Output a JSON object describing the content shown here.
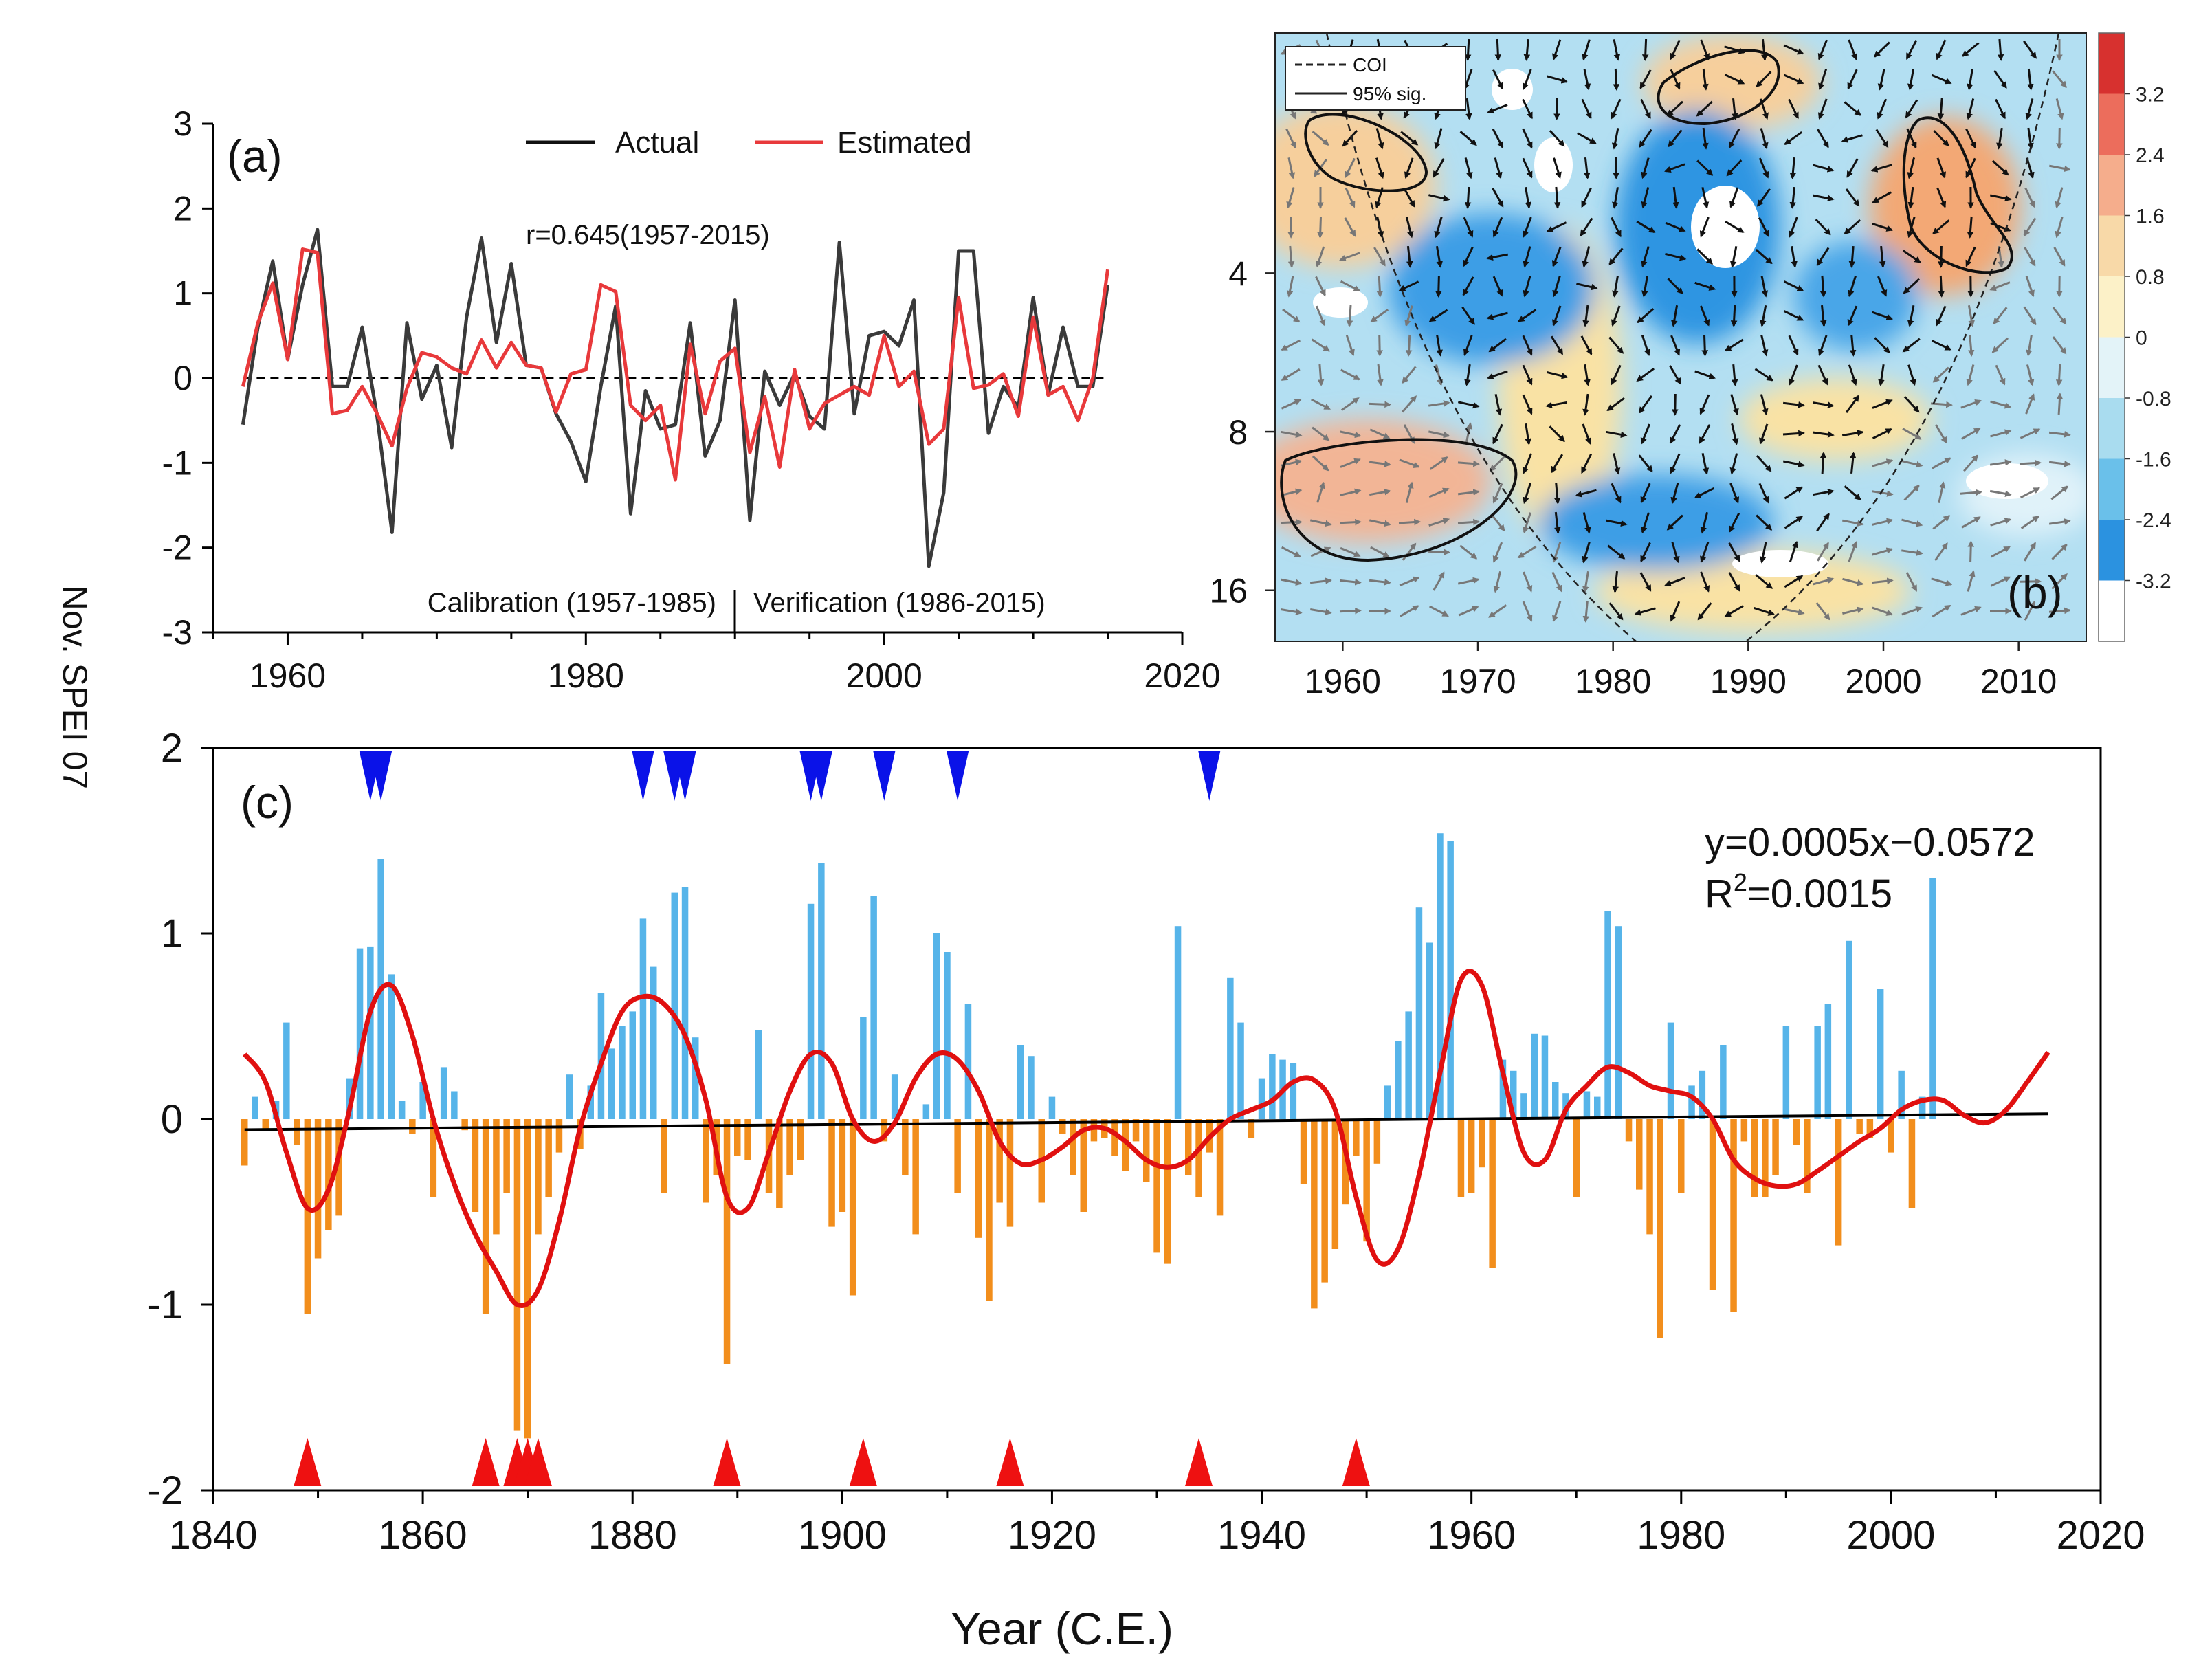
{
  "figure": {
    "shared_ylabel": "Nov. SPEI 07",
    "colors": {
      "actual": "#3a3a3a",
      "estimated": "#e8393b",
      "positive_bar": "#56b4e9",
      "negative_bar": "#f28e1c",
      "smooth": "#e01010",
      "trend": "#000000",
      "dry_marker": "#0a12e8",
      "wet_marker": "#ee1111"
    }
  },
  "chart_data": [
    {
      "id": "a",
      "type": "line",
      "panel_label": "(a)",
      "xlim": [
        1955,
        2020
      ],
      "ylim": [
        -3,
        3
      ],
      "xticks": [
        "1960",
        "1980",
        "2000",
        "2020"
      ],
      "xtick_values": [
        1960,
        1980,
        2000,
        2020
      ],
      "yticks": [
        "3",
        "2",
        "1",
        "0",
        "-1",
        "-2",
        "-3"
      ],
      "ytick_values": [
        3,
        2,
        1,
        0,
        -1,
        -2,
        -3
      ],
      "legend": [
        "Actual",
        "Estimated"
      ],
      "annotation": "r=0.645(1957-2015)",
      "period_labels": [
        "Calibration (1957-1985)",
        "Verification (1986-2015)"
      ],
      "x": [
        1957,
        1958,
        1959,
        1960,
        1961,
        1962,
        1963,
        1964,
        1965,
        1966,
        1967,
        1968,
        1969,
        1970,
        1971,
        1972,
        1973,
        1974,
        1975,
        1976,
        1977,
        1978,
        1979,
        1980,
        1981,
        1982,
        1983,
        1984,
        1985,
        1986,
        1987,
        1988,
        1989,
        1990,
        1991,
        1992,
        1993,
        1994,
        1995,
        1996,
        1997,
        1998,
        1999,
        2000,
        2001,
        2002,
        2003,
        2004,
        2005,
        2006,
        2007,
        2008,
        2009,
        2010,
        2011,
        2012,
        2013,
        2014,
        2015
      ],
      "series": [
        {
          "name": "Actual",
          "values": [
            -0.55,
            0.6,
            1.38,
            0.22,
            1.1,
            1.75,
            -0.1,
            -0.1,
            0.6,
            -0.45,
            -1.82,
            0.65,
            -0.25,
            0.15,
            -0.82,
            0.72,
            1.65,
            0.42,
            1.35,
            0.15,
            0.12,
            -0.42,
            -0.75,
            -1.22,
            -0.1,
            0.85,
            -1.6,
            -0.15,
            -0.6,
            -0.55,
            0.65,
            -0.92,
            -0.5,
            0.92,
            -1.68,
            0.08,
            -0.32,
            0.05,
            -0.45,
            -0.6,
            1.6,
            -0.42,
            0.5,
            0.55,
            0.38,
            0.92,
            -2.22,
            -1.35,
            1.5,
            1.5,
            -0.65,
            -0.1,
            -0.35,
            0.95,
            -0.2,
            0.6,
            -0.1,
            -0.1,
            1.1
          ]
        },
        {
          "name": "Estimated",
          "values": [
            -0.1,
            0.65,
            1.12,
            0.22,
            1.52,
            1.48,
            -0.42,
            -0.38,
            -0.1,
            -0.42,
            -0.8,
            -0.12,
            0.3,
            0.25,
            0.12,
            0.05,
            0.45,
            0.12,
            0.42,
            0.15,
            0.12,
            -0.4,
            0.05,
            0.1,
            1.1,
            1.02,
            -0.32,
            -0.5,
            -0.32,
            -1.2,
            0.4,
            -0.42,
            0.2,
            0.35,
            -0.88,
            -0.22,
            -1.05,
            0.1,
            -0.6,
            -0.3,
            -0.2,
            -0.1,
            -0.2,
            0.5,
            -0.1,
            0.08,
            -0.78,
            -0.6,
            0.95,
            -0.12,
            -0.08,
            0.05,
            -0.45,
            0.72,
            -0.2,
            -0.1,
            -0.5,
            0.0,
            1.28
          ]
        }
      ]
    },
    {
      "id": "b",
      "type": "heatmap",
      "panel_label": "(b)",
      "xlim": [
        1955,
        2015
      ],
      "xticks": [
        "1960",
        "1970",
        "1980",
        "1990",
        "2000",
        "2010"
      ],
      "xtick_values": [
        1960,
        1970,
        1980,
        1990,
        2000,
        2010
      ],
      "yticks": [
        "4",
        "8",
        "16"
      ],
      "ytick_values": [
        4,
        8,
        16
      ],
      "period_range": [
        1.4,
        20
      ],
      "legend": [
        "COI",
        "95% sig."
      ],
      "colorbar_ticks": [
        "3.2",
        "2.4",
        "1.6",
        "0.8",
        "0",
        "-0.8",
        "-1.6",
        "-2.4",
        "-3.2"
      ],
      "colorbar_values": [
        3.2,
        2.4,
        1.6,
        0.8,
        0,
        -0.8,
        -1.6,
        -2.4,
        -3.2
      ],
      "colorbar_colors": [
        "#d7312f",
        "#ec6d5c",
        "#f5ad8c",
        "#f8d9a8",
        "#fcf1c8",
        "#e3f3f8",
        "#a9dcef",
        "#6ac0ea",
        "#2b92e0",
        "#ffffff"
      ]
    },
    {
      "id": "c",
      "type": "bar",
      "panel_label": "(c)",
      "xlim": [
        1840,
        2020
      ],
      "ylim": [
        -2,
        2
      ],
      "xticks": [
        "1840",
        "1860",
        "1880",
        "1900",
        "1920",
        "1940",
        "1960",
        "1980",
        "2000",
        "2020"
      ],
      "xtick_values": [
        1840,
        1860,
        1880,
        1900,
        1920,
        1940,
        1960,
        1980,
        2000,
        2020
      ],
      "yticks": [
        "2",
        "1",
        "0",
        "-1",
        "-2"
      ],
      "ytick_values": [
        2,
        1,
        0,
        -1,
        -2
      ],
      "xlabel": "Year (C.E.)",
      "equation": "y=0.0005x−0.0572",
      "r2_label": "R",
      "r2_sup": "2",
      "r2_value": "=0.0015",
      "trend": {
        "slope": 0.0005,
        "intercept": -0.0572,
        "x0": 1843
      },
      "start_year": 1843,
      "values": [
        -0.25,
        0.12,
        -0.06,
        0.1,
        0.52,
        -0.14,
        -1.05,
        -0.75,
        -0.6,
        -0.52,
        0.22,
        0.92,
        0.93,
        1.4,
        0.78,
        0.1,
        -0.08,
        0.2,
        -0.42,
        0.28,
        0.15,
        -0.06,
        -0.5,
        -1.05,
        -0.62,
        -0.4,
        -1.68,
        -1.72,
        -0.62,
        -0.42,
        -0.18,
        0.24,
        -0.16,
        0.18,
        0.68,
        0.38,
        0.5,
        0.58,
        1.08,
        0.82,
        -0.4,
        1.22,
        1.25,
        0.44,
        -0.45,
        -0.3,
        -1.32,
        -0.2,
        -0.22,
        0.48,
        -0.4,
        -0.48,
        -0.3,
        -0.22,
        1.16,
        1.38,
        -0.58,
        -0.5,
        -0.95,
        0.55,
        1.2,
        -0.12,
        0.24,
        -0.3,
        -0.62,
        0.08,
        1.0,
        0.9,
        -0.4,
        0.62,
        -0.64,
        -0.98,
        -0.45,
        -0.58,
        0.4,
        0.34,
        -0.45,
        0.12,
        -0.08,
        -0.3,
        -0.5,
        -0.12,
        -0.1,
        -0.2,
        -0.28,
        -0.12,
        -0.34,
        -0.72,
        -0.78,
        1.04,
        -0.3,
        -0.42,
        -0.18,
        -0.52,
        0.76,
        0.52,
        -0.1,
        0.22,
        0.35,
        0.32,
        0.3,
        -0.35,
        -1.02,
        -0.88,
        -0.7,
        -0.46,
        -0.2,
        -0.66,
        -0.24,
        0.18,
        0.42,
        0.58,
        1.14,
        0.95,
        1.54,
        1.5,
        -0.42,
        -0.4,
        -0.26,
        -0.8,
        0.32,
        0.26,
        0.14,
        0.46,
        0.45,
        0.2,
        0.14,
        -0.42,
        0.15,
        0.12,
        1.12,
        1.04,
        -0.12,
        -0.38,
        -0.62,
        -1.18,
        0.52,
        -0.4,
        0.18,
        0.26,
        -0.92,
        0.4,
        -1.04,
        -0.12,
        -0.42,
        -0.42,
        -0.3,
        0.5,
        -0.14,
        -0.4,
        0.5,
        0.62,
        -0.68,
        0.96,
        -0.08,
        -0.1,
        0.7,
        -0.18,
        0.26,
        -0.48,
        0.12,
        1.3
      ],
      "smooth": [
        [
          1843,
          0.35
        ],
        [
          1845,
          0.2
        ],
        [
          1847,
          -0.18
        ],
        [
          1849,
          -0.48
        ],
        [
          1851,
          -0.38
        ],
        [
          1853,
          0.05
        ],
        [
          1855,
          0.58
        ],
        [
          1857,
          0.72
        ],
        [
          1859,
          0.45
        ],
        [
          1861,
          0.0
        ],
        [
          1863,
          -0.35
        ],
        [
          1865,
          -0.62
        ],
        [
          1867,
          -0.82
        ],
        [
          1869,
          -1.0
        ],
        [
          1871,
          -0.92
        ],
        [
          1873,
          -0.55
        ],
        [
          1875,
          -0.05
        ],
        [
          1877,
          0.3
        ],
        [
          1879,
          0.58
        ],
        [
          1881,
          0.66
        ],
        [
          1883,
          0.62
        ],
        [
          1885,
          0.45
        ],
        [
          1887,
          0.1
        ],
        [
          1889,
          -0.42
        ],
        [
          1891,
          -0.48
        ],
        [
          1893,
          -0.18
        ],
        [
          1895,
          0.15
        ],
        [
          1897,
          0.35
        ],
        [
          1899,
          0.3
        ],
        [
          1901,
          0.0
        ],
        [
          1903,
          -0.12
        ],
        [
          1905,
          -0.02
        ],
        [
          1907,
          0.22
        ],
        [
          1909,
          0.35
        ],
        [
          1911,
          0.32
        ],
        [
          1913,
          0.15
        ],
        [
          1915,
          -0.12
        ],
        [
          1917,
          -0.24
        ],
        [
          1919,
          -0.22
        ],
        [
          1921,
          -0.15
        ],
        [
          1923,
          -0.06
        ],
        [
          1925,
          -0.05
        ],
        [
          1927,
          -0.12
        ],
        [
          1929,
          -0.22
        ],
        [
          1931,
          -0.26
        ],
        [
          1933,
          -0.22
        ],
        [
          1935,
          -0.1
        ],
        [
          1937,
          0.0
        ],
        [
          1939,
          0.05
        ],
        [
          1941,
          0.1
        ],
        [
          1943,
          0.2
        ],
        [
          1945,
          0.21
        ],
        [
          1947,
          0.05
        ],
        [
          1949,
          -0.42
        ],
        [
          1951,
          -0.76
        ],
        [
          1953,
          -0.7
        ],
        [
          1955,
          -0.3
        ],
        [
          1957,
          0.25
        ],
        [
          1959,
          0.75
        ],
        [
          1961,
          0.72
        ],
        [
          1963,
          0.25
        ],
        [
          1965,
          -0.18
        ],
        [
          1967,
          -0.22
        ],
        [
          1969,
          0.05
        ],
        [
          1971,
          0.18
        ],
        [
          1973,
          0.28
        ],
        [
          1975,
          0.25
        ],
        [
          1977,
          0.18
        ],
        [
          1979,
          0.15
        ],
        [
          1981,
          0.12
        ],
        [
          1983,
          0.0
        ],
        [
          1985,
          -0.22
        ],
        [
          1987,
          -0.32
        ],
        [
          1989,
          -0.36
        ],
        [
          1991,
          -0.35
        ],
        [
          1993,
          -0.28
        ],
        [
          1995,
          -0.2
        ],
        [
          1997,
          -0.12
        ],
        [
          1999,
          -0.05
        ],
        [
          2001,
          0.05
        ],
        [
          2003,
          0.1
        ],
        [
          2005,
          0.1
        ],
        [
          2007,
          0.02
        ],
        [
          2009,
          -0.02
        ],
        [
          2011,
          0.05
        ],
        [
          2013,
          0.2
        ],
        [
          2015,
          0.36
        ]
      ],
      "dry_years": [
        1855,
        1856,
        1881,
        1884,
        1885,
        1897,
        1898,
        1904,
        1911,
        1935
      ],
      "wet_years": [
        1849,
        1866,
        1869,
        1870,
        1871,
        1889,
        1902,
        1916,
        1934,
        1949
      ]
    }
  ]
}
